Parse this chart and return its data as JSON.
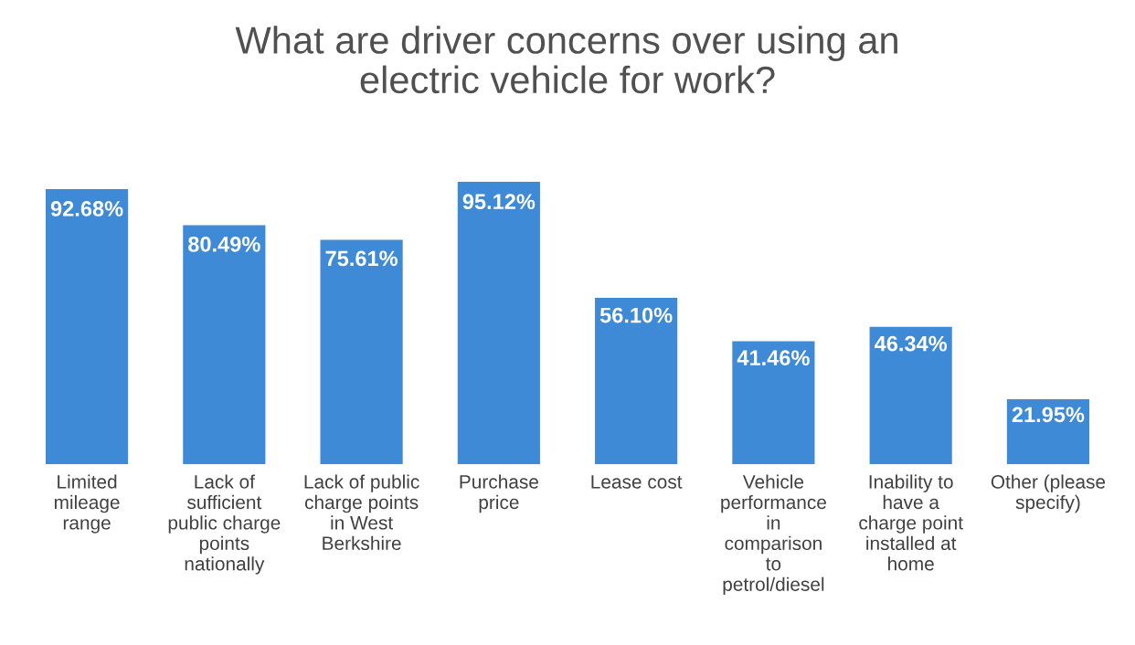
{
  "chart_data": {
    "type": "bar",
    "title": "What are driver concerns over using an\nelectric vehicle for work?",
    "categories": [
      "Limited\nmileage\nrange",
      "Lack of\nsufficient\npublic charge\npoints\nnationally",
      "Lack of public\ncharge points\nin West\nBerkshire",
      "Purchase\nprice",
      "Lease cost",
      "Vehicle\nperformance\nin\ncomparison\nto\npetrol/diesel",
      "Inability to\nhave a\ncharge point\ninstalled at\nhome",
      "Other (please\nspecify)"
    ],
    "values": [
      92.68,
      80.49,
      75.61,
      95.12,
      56.1,
      41.46,
      46.34,
      21.95
    ],
    "value_labels": [
      "92.68%",
      "80.49%",
      "75.61%",
      "95.12%",
      "56.10%",
      "41.46%",
      "46.34%",
      "21.95%"
    ],
    "color": "#3f8ad6",
    "grid": false,
    "legend": false
  }
}
